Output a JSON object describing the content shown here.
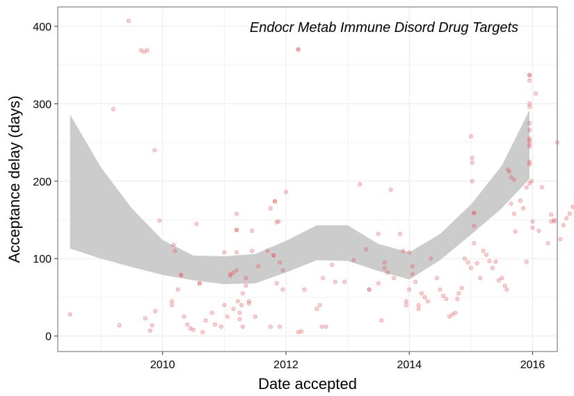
{
  "chart_data": {
    "type": "scatter",
    "title": "Endocr Metab Immune Disord Drug Targets",
    "xlabel": "Date accepted",
    "ylabel": "Acceptance delay (days)",
    "xlim": [
      2008.3,
      2016.4
    ],
    "ylim": [
      -20,
      425
    ],
    "x_ticks": [
      2010,
      2012,
      2014,
      2016
    ],
    "x_tick_labels": [
      "2010",
      "2012",
      "2014",
      "2016"
    ],
    "y_ticks": [
      0,
      100,
      200,
      300,
      400
    ],
    "y_tick_labels": [
      "0",
      "100",
      "200",
      "300",
      "400"
    ],
    "grid": true,
    "legend": "none",
    "colors": {
      "points": "#e8494b",
      "band": "#cccccc",
      "grid": "#ebebeb",
      "border": "#7f7f7f"
    },
    "points": [
      [
        2008.5,
        28
      ],
      [
        2009.2,
        293
      ],
      [
        2009.3,
        14
      ],
      [
        2009.45,
        407
      ],
      [
        2009.65,
        369
      ],
      [
        2009.7,
        367
      ],
      [
        2009.75,
        369
      ],
      [
        2009.72,
        23
      ],
      [
        2009.8,
        7
      ],
      [
        2009.83,
        14
      ],
      [
        2009.88,
        32
      ],
      [
        2009.87,
        240
      ],
      [
        2009.95,
        149
      ],
      [
        2010.3,
        79
      ],
      [
        2010.3,
        79
      ],
      [
        2010.15,
        45
      ],
      [
        2010.15,
        40
      ],
      [
        2010.18,
        118
      ],
      [
        2010.2,
        110
      ],
      [
        2010.25,
        60
      ],
      [
        2010.35,
        25
      ],
      [
        2010.4,
        15
      ],
      [
        2010.45,
        10
      ],
      [
        2010.5,
        8
      ],
      [
        2010.55,
        145
      ],
      [
        2010.6,
        68
      ],
      [
        2010.6,
        68
      ],
      [
        2010.65,
        5
      ],
      [
        2010.7,
        20
      ],
      [
        2010.8,
        30
      ],
      [
        2010.85,
        15
      ],
      [
        2010.95,
        12
      ],
      [
        2011.0,
        108
      ],
      [
        2011.0,
        40
      ],
      [
        2011.05,
        25
      ],
      [
        2011.1,
        80
      ],
      [
        2011.1,
        78
      ],
      [
        2011.15,
        82
      ],
      [
        2011.15,
        35
      ],
      [
        2011.2,
        108
      ],
      [
        2011.2,
        158
      ],
      [
        2011.2,
        137
      ],
      [
        2011.2,
        137
      ],
      [
        2011.2,
        85
      ],
      [
        2011.22,
        45
      ],
      [
        2011.25,
        30
      ],
      [
        2011.25,
        22
      ],
      [
        2011.28,
        40
      ],
      [
        2011.3,
        12
      ],
      [
        2011.3,
        55
      ],
      [
        2011.35,
        75
      ],
      [
        2011.35,
        65
      ],
      [
        2011.4,
        45
      ],
      [
        2011.4,
        42
      ],
      [
        2011.45,
        110
      ],
      [
        2011.45,
        136
      ],
      [
        2011.5,
        25
      ],
      [
        2011.55,
        90
      ],
      [
        2011.7,
        110
      ],
      [
        2011.75,
        165
      ],
      [
        2011.8,
        104
      ],
      [
        2011.8,
        104
      ],
      [
        2011.82,
        174
      ],
      [
        2011.82,
        174
      ],
      [
        2011.85,
        147
      ],
      [
        2011.88,
        148
      ],
      [
        2011.9,
        95
      ],
      [
        2011.95,
        85
      ],
      [
        2011.9,
        12
      ],
      [
        2011.75,
        12
      ],
      [
        2011.85,
        68
      ],
      [
        2011.95,
        60
      ],
      [
        2012.0,
        186
      ],
      [
        2012.2,
        370
      ],
      [
        2012.2,
        370
      ],
      [
        2012.2,
        5
      ],
      [
        2012.25,
        6
      ],
      [
        2012.3,
        60
      ],
      [
        2012.5,
        35
      ],
      [
        2012.55,
        40
      ],
      [
        2012.58,
        12
      ],
      [
        2012.65,
        12
      ],
      [
        2012.6,
        75
      ],
      [
        2012.75,
        92
      ],
      [
        2012.8,
        70
      ],
      [
        2012.95,
        70
      ],
      [
        2013.1,
        98
      ],
      [
        2013.2,
        196
      ],
      [
        2013.3,
        112
      ],
      [
        2013.35,
        60
      ],
      [
        2013.35,
        60
      ],
      [
        2013.5,
        132
      ],
      [
        2013.5,
        68
      ],
      [
        2013.55,
        20
      ],
      [
        2013.6,
        95
      ],
      [
        2013.6,
        88
      ],
      [
        2013.65,
        82
      ],
      [
        2013.7,
        189
      ],
      [
        2013.75,
        75
      ],
      [
        2013.85,
        132
      ],
      [
        2013.9,
        110
      ],
      [
        2013.95,
        45
      ],
      [
        2013.95,
        40
      ],
      [
        2014.0,
        60
      ],
      [
        2014.0,
        108
      ],
      [
        2014.05,
        90
      ],
      [
        2014.05,
        80
      ],
      [
        2014.1,
        70
      ],
      [
        2014.15,
        40
      ],
      [
        2014.15,
        35
      ],
      [
        2014.2,
        55
      ],
      [
        2014.25,
        50
      ],
      [
        2014.3,
        45
      ],
      [
        2014.35,
        100
      ],
      [
        2014.45,
        75
      ],
      [
        2014.5,
        60
      ],
      [
        2014.55,
        52
      ],
      [
        2014.6,
        48
      ],
      [
        2014.65,
        25
      ],
      [
        2014.7,
        28
      ],
      [
        2014.75,
        30
      ],
      [
        2014.78,
        48
      ],
      [
        2014.8,
        55
      ],
      [
        2014.85,
        62
      ],
      [
        2014.9,
        100
      ],
      [
        2014.95,
        95
      ],
      [
        2015.0,
        88
      ],
      [
        2015.0,
        258
      ],
      [
        2015.02,
        230
      ],
      [
        2015.02,
        224
      ],
      [
        2015.02,
        200
      ],
      [
        2015.05,
        159
      ],
      [
        2015.05,
        159
      ],
      [
        2015.05,
        142
      ],
      [
        2015.05,
        120
      ],
      [
        2015.1,
        94
      ],
      [
        2015.15,
        75
      ],
      [
        2015.2,
        110
      ],
      [
        2015.25,
        105
      ],
      [
        2015.3,
        97
      ],
      [
        2015.35,
        88
      ],
      [
        2015.4,
        96
      ],
      [
        2015.45,
        72
      ],
      [
        2015.5,
        75
      ],
      [
        2015.55,
        65
      ],
      [
        2015.58,
        60
      ],
      [
        2015.6,
        215
      ],
      [
        2015.62,
        212
      ],
      [
        2015.65,
        205
      ],
      [
        2015.65,
        171
      ],
      [
        2015.7,
        202
      ],
      [
        2015.7,
        158
      ],
      [
        2015.72,
        135
      ],
      [
        2015.8,
        175
      ],
      [
        2015.85,
        165
      ],
      [
        2015.9,
        192
      ],
      [
        2015.9,
        96
      ],
      [
        2015.95,
        337
      ],
      [
        2015.95,
        337
      ],
      [
        2015.95,
        330
      ],
      [
        2015.95,
        300
      ],
      [
        2015.95,
        296
      ],
      [
        2015.95,
        275
      ],
      [
        2015.95,
        266
      ],
      [
        2015.95,
        255
      ],
      [
        2015.95,
        252
      ],
      [
        2015.95,
        248
      ],
      [
        2015.95,
        245
      ],
      [
        2015.95,
        225
      ],
      [
        2015.95,
        222
      ],
      [
        2015.95,
        197
      ],
      [
        2015.98,
        200
      ],
      [
        2016.0,
        148
      ],
      [
        2016.0,
        140
      ],
      [
        2016.05,
        313
      ],
      [
        2016.1,
        136
      ],
      [
        2016.15,
        192
      ],
      [
        2016.25,
        120
      ],
      [
        2016.3,
        157
      ],
      [
        2016.3,
        148
      ],
      [
        2016.35,
        148
      ],
      [
        2016.35,
        150
      ],
      [
        2016.4,
        250
      ],
      [
        2016.45,
        125
      ],
      [
        2016.5,
        143
      ],
      [
        2016.55,
        152
      ],
      [
        2016.6,
        158
      ],
      [
        2016.65,
        167
      ],
      [
        2016.7,
        183
      ]
    ],
    "band": {
      "x": [
        2008.5,
        2009.0,
        2009.5,
        2010.0,
        2010.5,
        2011.0,
        2011.5,
        2012.0,
        2012.5,
        2013.0,
        2013.5,
        2014.0,
        2014.5,
        2015.0,
        2015.5,
        2015.95
      ],
      "lower": [
        113,
        100,
        89,
        79,
        72,
        67,
        68,
        82,
        98,
        97,
        84,
        73,
        98,
        131,
        165,
        203
      ],
      "upper": [
        286,
        218,
        165,
        124,
        104,
        103,
        106,
        123,
        143,
        143,
        119,
        108,
        132,
        170,
        220,
        292
      ]
    }
  }
}
